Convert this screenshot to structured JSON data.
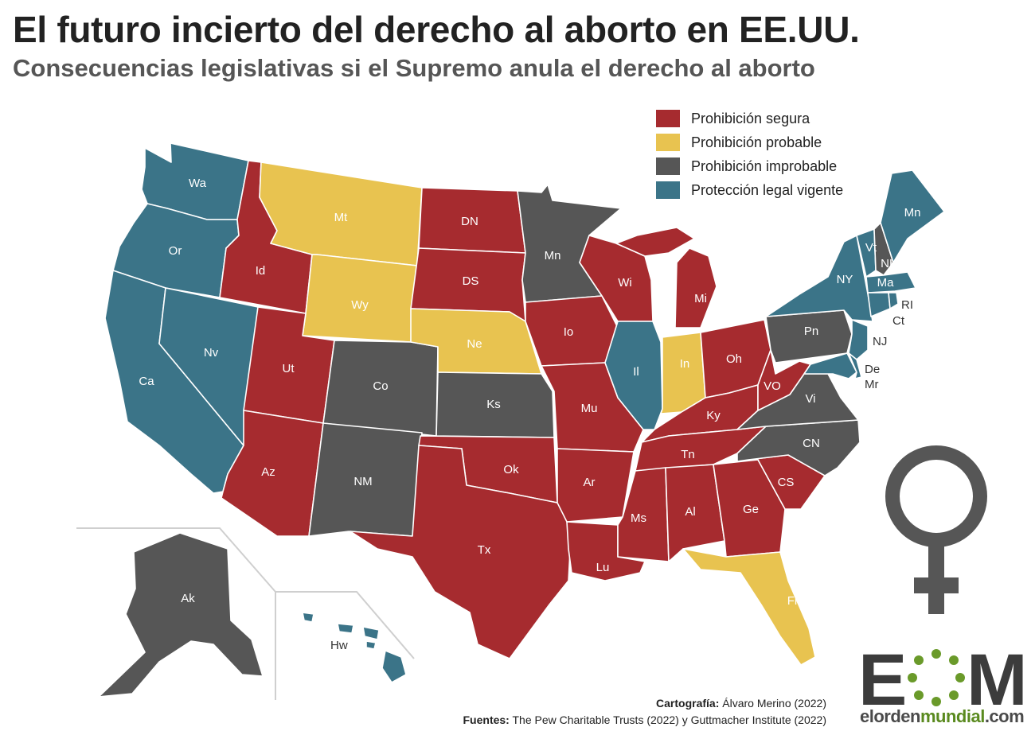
{
  "title": "El futuro incierto del derecho al aborto en EE.UU.",
  "subtitle": "Consecuencias legislativas si el Supremo anula el derecho al aborto",
  "legend": [
    {
      "label": "Prohibición segura",
      "color": "#a62b2f"
    },
    {
      "label": "Prohibición probable",
      "color": "#e8c350"
    },
    {
      "label": "Prohibición improbable",
      "color": "#565656"
    },
    {
      "label": "Protección legal vigente",
      "color": "#3b7488"
    }
  ],
  "categories": {
    "seguro": "#a62b2f",
    "probable": "#e8c350",
    "improbable": "#565656",
    "proteccion": "#3b7488"
  },
  "states": {
    "wa": {
      "label": "Wa",
      "status": "proteccion"
    },
    "or": {
      "label": "Or",
      "status": "proteccion"
    },
    "ca": {
      "label": "Ca",
      "status": "proteccion"
    },
    "nv": {
      "label": "Nv",
      "status": "proteccion"
    },
    "id": {
      "label": "Id",
      "status": "seguro"
    },
    "mt": {
      "label": "Mt",
      "status": "probable"
    },
    "wy": {
      "label": "Wy",
      "status": "probable"
    },
    "ut": {
      "label": "Ut",
      "status": "seguro"
    },
    "az": {
      "label": "Az",
      "status": "seguro"
    },
    "co": {
      "label": "Co",
      "status": "improbable"
    },
    "nm": {
      "label": "NM",
      "status": "improbable"
    },
    "dn": {
      "label": "DN",
      "status": "seguro"
    },
    "ds": {
      "label": "DS",
      "status": "seguro"
    },
    "ne": {
      "label": "Ne",
      "status": "probable"
    },
    "ks": {
      "label": "Ks",
      "status": "improbable"
    },
    "ok": {
      "label": "Ok",
      "status": "seguro"
    },
    "tx": {
      "label": "Tx",
      "status": "seguro"
    },
    "mn": {
      "label": "Mn",
      "status": "improbable"
    },
    "io": {
      "label": "Io",
      "status": "seguro"
    },
    "mu": {
      "label": "Mu",
      "status": "seguro"
    },
    "ar": {
      "label": "Ar",
      "status": "seguro"
    },
    "lu": {
      "label": "Lu",
      "status": "seguro"
    },
    "wi": {
      "label": "Wi",
      "status": "seguro"
    },
    "il": {
      "label": "Il",
      "status": "proteccion"
    },
    "mi": {
      "label": "Mi",
      "status": "seguro"
    },
    "in": {
      "label": "In",
      "status": "probable"
    },
    "oh": {
      "label": "Oh",
      "status": "seguro"
    },
    "ky": {
      "label": "Ky",
      "status": "seguro"
    },
    "tn": {
      "label": "Tn",
      "status": "seguro"
    },
    "ms": {
      "label": "Ms",
      "status": "seguro"
    },
    "al": {
      "label": "Al",
      "status": "seguro"
    },
    "ge": {
      "label": "Ge",
      "status": "seguro"
    },
    "fl": {
      "label": "Fl",
      "status": "probable"
    },
    "cs": {
      "label": "CS",
      "status": "seguro"
    },
    "cn": {
      "label": "CN",
      "status": "improbable"
    },
    "vi": {
      "label": "Vi",
      "status": "improbable"
    },
    "vo": {
      "label": "VO",
      "status": "seguro"
    },
    "pn": {
      "label": "Pn",
      "status": "improbable"
    },
    "ny": {
      "label": "NY",
      "status": "proteccion"
    },
    "nj": {
      "label": "NJ",
      "status": "proteccion"
    },
    "de": {
      "label": "De",
      "status": "proteccion"
    },
    "md": {
      "label": "Mr",
      "status": "proteccion"
    },
    "vt": {
      "label": "Vt",
      "status": "proteccion"
    },
    "nh": {
      "label": "NH",
      "status": "improbable"
    },
    "me": {
      "label": "Mn",
      "status": "proteccion"
    },
    "ma": {
      "label": "Ma",
      "status": "proteccion"
    },
    "ri": {
      "label": "RI",
      "status": "proteccion"
    },
    "ct": {
      "label": "Ct",
      "status": "proteccion"
    },
    "ak": {
      "label": "Ak",
      "status": "improbable"
    },
    "hw": {
      "label": "Hw",
      "status": "proteccion"
    }
  },
  "credits": {
    "cartografia_label": "Cartografía:",
    "cartografia_value": "Álvaro Merino (2022)",
    "fuentes_label": "Fuentes:",
    "fuentes_value": "The Pew Charitable Trusts (2022) y Guttmacher Institute (2022)"
  },
  "logo": {
    "letters_left": "E",
    "letters_right": "M",
    "site_a": "elorden",
    "site_b": "mundial",
    "site_c": ".com"
  },
  "icons": {
    "venus": "venus-symbol-icon"
  }
}
